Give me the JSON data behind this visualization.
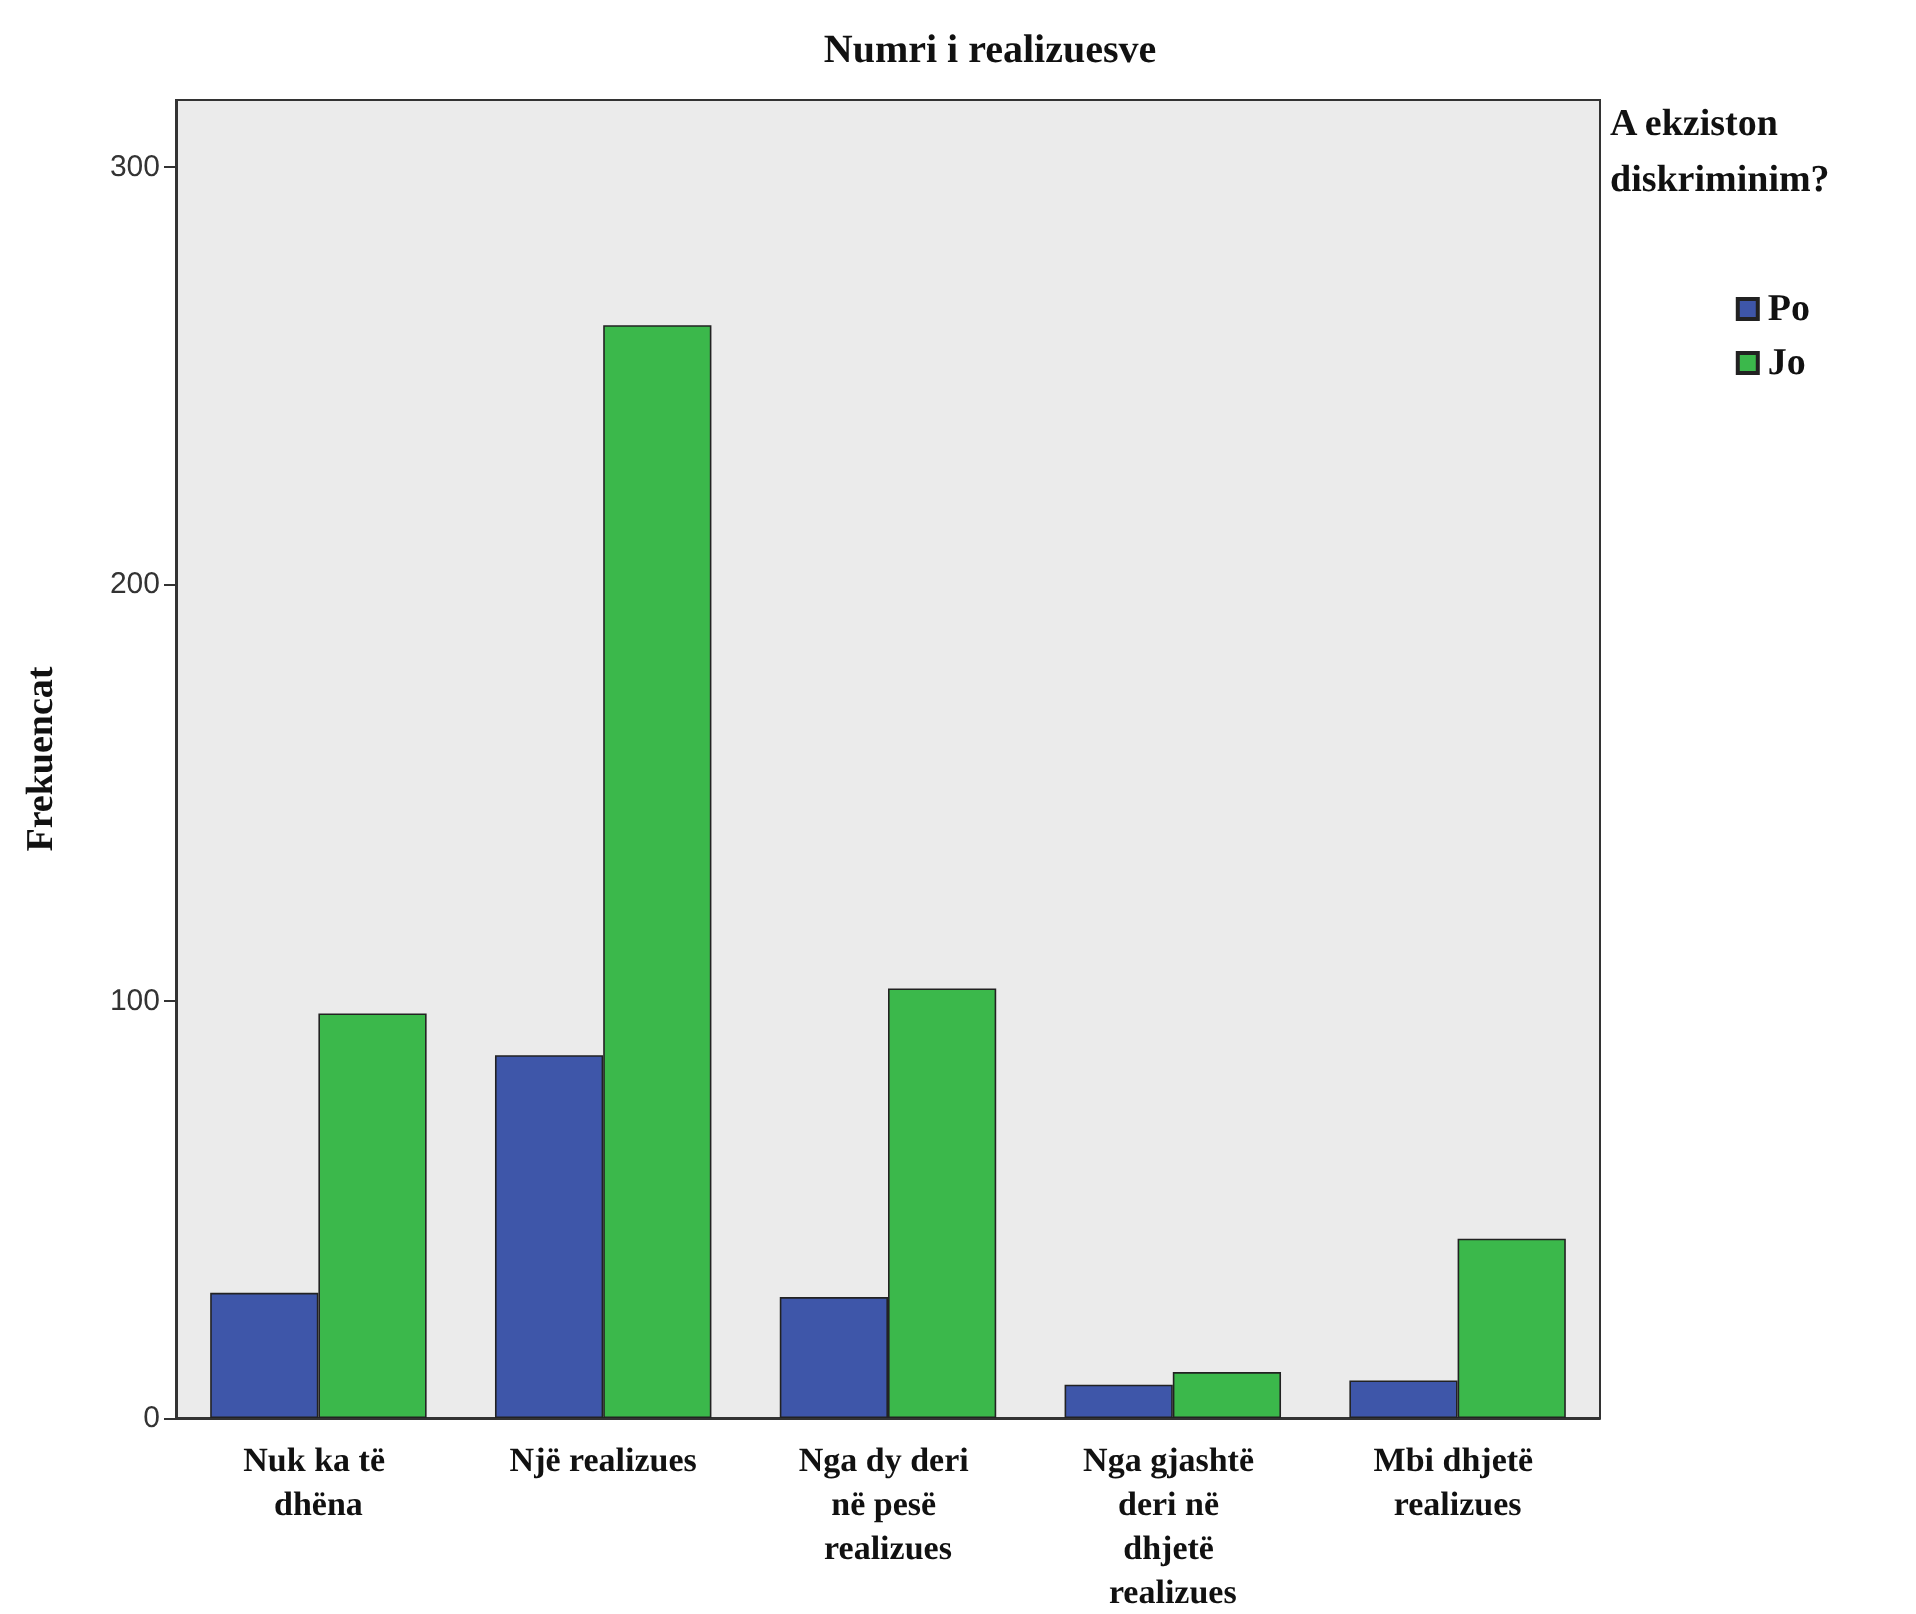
{
  "chart_data": {
    "type": "bar",
    "title": "Numri i realizuesve",
    "ylabel": "Frekuencat",
    "legend_title": "A ekziston diskriminim?",
    "categories": [
      "Nuk ka të dhëna",
      "Një realizues",
      "Nga dy deri në pesë realizues",
      "Nga gjashtë deri në dhjetë realizues",
      "Mbi dhjetë realizues"
    ],
    "series": [
      {
        "name": "Po",
        "color": "#3e56a9",
        "values": [
          30,
          87,
          29,
          8,
          9
        ]
      },
      {
        "name": "Jo",
        "color": "#3bb84b",
        "values": [
          97,
          262,
          103,
          11,
          43
        ]
      }
    ],
    "ylim": [
      0,
      316
    ],
    "yticks": [
      0,
      100,
      200,
      300
    ],
    "grid": false,
    "legend": "top right"
  }
}
